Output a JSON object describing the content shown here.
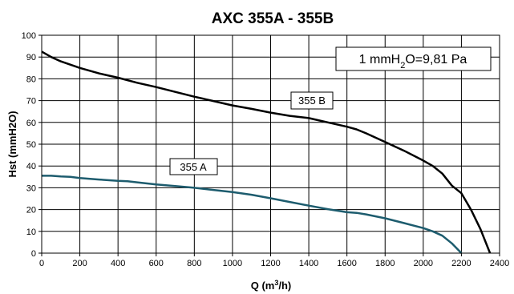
{
  "chart_data": {
    "type": "line",
    "title": "AXC 355A - 355B",
    "xlabel": "Q (m3/h)",
    "xlabel_sup": "3",
    "ylabel": "Hst (mmH2O)",
    "xlim": [
      0,
      2400
    ],
    "ylim": [
      0,
      100
    ],
    "x_ticks": [
      0,
      200,
      400,
      600,
      800,
      1000,
      1200,
      1400,
      1600,
      1800,
      2000,
      2200,
      2400
    ],
    "y_ticks": [
      0,
      10,
      20,
      30,
      40,
      50,
      60,
      70,
      80,
      90,
      100
    ],
    "grid": true,
    "annotation": "1 mmH2O=9,81 Pa",
    "series": [
      {
        "name": "355 A",
        "color": "#1d5c6e",
        "points": [
          [
            0,
            35.5
          ],
          [
            50,
            35.5
          ],
          [
            100,
            35.2
          ],
          [
            150,
            35
          ],
          [
            200,
            34.5
          ],
          [
            300,
            33.8
          ],
          [
            400,
            33.2
          ],
          [
            450,
            33
          ],
          [
            500,
            32.5
          ],
          [
            600,
            31.5
          ],
          [
            700,
            30.8
          ],
          [
            800,
            30
          ],
          [
            900,
            29
          ],
          [
            1000,
            28
          ],
          [
            1100,
            26.8
          ],
          [
            1200,
            25.2
          ],
          [
            1300,
            23.5
          ],
          [
            1400,
            21.8
          ],
          [
            1500,
            20.2
          ],
          [
            1600,
            18.8
          ],
          [
            1650,
            18.5
          ],
          [
            1700,
            17.8
          ],
          [
            1800,
            16
          ],
          [
            1900,
            13.8
          ],
          [
            2000,
            11.5
          ],
          [
            2050,
            10
          ],
          [
            2100,
            8
          ],
          [
            2150,
            4.5
          ],
          [
            2200,
            0
          ]
        ]
      },
      {
        "name": "355 B",
        "color": "#000000",
        "points": [
          [
            0,
            92.5
          ],
          [
            50,
            90
          ],
          [
            100,
            88
          ],
          [
            150,
            86.5
          ],
          [
            200,
            85
          ],
          [
            300,
            82.5
          ],
          [
            400,
            80.5
          ],
          [
            500,
            78.2
          ],
          [
            600,
            76.2
          ],
          [
            700,
            74
          ],
          [
            800,
            71.8
          ],
          [
            900,
            69.8
          ],
          [
            1000,
            67.8
          ],
          [
            1100,
            66.2
          ],
          [
            1200,
            64.5
          ],
          [
            1300,
            63
          ],
          [
            1400,
            62
          ],
          [
            1450,
            61
          ],
          [
            1500,
            60
          ],
          [
            1600,
            58
          ],
          [
            1650,
            56.8
          ],
          [
            1700,
            55
          ],
          [
            1800,
            51
          ],
          [
            1900,
            47
          ],
          [
            2000,
            42.5
          ],
          [
            2050,
            40
          ],
          [
            2100,
            36.5
          ],
          [
            2150,
            31
          ],
          [
            2200,
            27.5
          ],
          [
            2250,
            20
          ],
          [
            2300,
            11
          ],
          [
            2350,
            0
          ]
        ]
      }
    ]
  }
}
